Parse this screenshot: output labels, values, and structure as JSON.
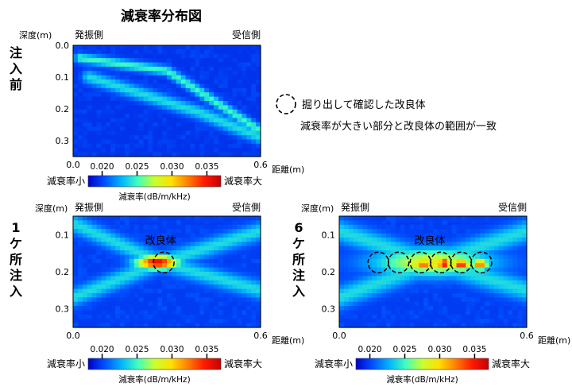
{
  "title": "減衰率分布図",
  "legend": {
    "symbol_label": "掘り出して確認した改良体",
    "note": "減衰率が大きい部分と改良体の範囲が一致"
  },
  "common": {
    "depth_label": "深度(m)",
    "distance_label": "距離(m)",
    "transmitter_label": "発振側",
    "receiver_label": "受信側",
    "colorbar_low": "減衰率小",
    "colorbar_high": "減衰率大",
    "colorbar_unit": "減衰率(dB/m/kHz)",
    "colorbar_ticks": [
      "0.020",
      "0.025",
      "0.030",
      "0.035"
    ],
    "colorbar_range": [
      0.018,
      0.037
    ],
    "xlim": [
      0.0,
      0.6
    ],
    "ylim": [
      0.0,
      0.35
    ],
    "x_ticks": [
      "0.0",
      "0.6"
    ],
    "colormap": [
      "#0000c8",
      "#0050ff",
      "#00b4ff",
      "#40ffbf",
      "#c8ff30",
      "#ffe000",
      "#ff8000",
      "#ff1a00",
      "#c80000"
    ]
  },
  "chart_data": [
    {
      "type": "heatmap",
      "panel_label": "注入前",
      "y_ticks": [
        "0.0",
        "0.1",
        "0.2",
        "0.3"
      ],
      "features": [
        {
          "kind": "path",
          "points": [
            [
              0.02,
              0.04
            ],
            [
              0.3,
              0.08
            ],
            [
              0.6,
              0.27
            ]
          ],
          "peak": 0.025,
          "width": 0.018
        },
        {
          "kind": "path",
          "points": [
            [
              0.05,
              0.1
            ],
            [
              0.4,
              0.21
            ],
            [
              0.6,
              0.29
            ]
          ],
          "peak": 0.024,
          "width": 0.025
        }
      ],
      "background": 0.0195,
      "overlay_label": "",
      "circles": []
    },
    {
      "type": "heatmap",
      "panel_label": "1ケ所注入",
      "y_ticks": [
        "0.1",
        "0.2",
        "0.3"
      ],
      "features": [
        {
          "kind": "path",
          "points": [
            [
              0.0,
              0.07
            ],
            [
              0.28,
              0.175
            ],
            [
              0.6,
              0.25
            ]
          ],
          "peak": 0.024,
          "width": 0.028
        },
        {
          "kind": "path",
          "points": [
            [
              0.0,
              0.27
            ],
            [
              0.28,
              0.175
            ],
            [
              0.6,
              0.09
            ]
          ],
          "peak": 0.024,
          "width": 0.028
        },
        {
          "kind": "blob",
          "cx": 0.27,
          "cy": 0.175,
          "rx": 0.085,
          "ry": 0.024,
          "peak": 0.036
        }
      ],
      "background": 0.0198,
      "overlay_label": "改良体",
      "circles": [
        {
          "x": 0.29,
          "y": 0.175
        }
      ]
    },
    {
      "type": "heatmap",
      "panel_label": "6ケ所注入",
      "y_ticks": [
        "0.1",
        "0.2",
        "0.3"
      ],
      "features": [
        {
          "kind": "path",
          "points": [
            [
              0.0,
              0.09
            ],
            [
              0.3,
              0.175
            ],
            [
              0.6,
              0.25
            ]
          ],
          "peak": 0.024,
          "width": 0.035
        },
        {
          "kind": "path",
          "points": [
            [
              0.0,
              0.27
            ],
            [
              0.3,
              0.175
            ],
            [
              0.6,
              0.09
            ]
          ],
          "peak": 0.024,
          "width": 0.035
        },
        {
          "kind": "blob",
          "cx": 0.3,
          "cy": 0.175,
          "rx": 0.23,
          "ry": 0.045,
          "peak": 0.029
        },
        {
          "kind": "blob",
          "cx": 0.27,
          "cy": 0.18,
          "rx": 0.05,
          "ry": 0.022,
          "peak": 0.033
        },
        {
          "kind": "blob",
          "cx": 0.335,
          "cy": 0.178,
          "rx": 0.03,
          "ry": 0.02,
          "peak": 0.036
        },
        {
          "kind": "blob",
          "cx": 0.39,
          "cy": 0.18,
          "rx": 0.04,
          "ry": 0.02,
          "peak": 0.035
        },
        {
          "kind": "blob",
          "cx": 0.45,
          "cy": 0.18,
          "rx": 0.035,
          "ry": 0.02,
          "peak": 0.033
        }
      ],
      "background": 0.0198,
      "overlay_label": "改良体",
      "circles": [
        {
          "x": 0.125,
          "y": 0.175
        },
        {
          "x": 0.19,
          "y": 0.175
        },
        {
          "x": 0.26,
          "y": 0.175
        },
        {
          "x": 0.325,
          "y": 0.175
        },
        {
          "x": 0.39,
          "y": 0.175
        },
        {
          "x": 0.455,
          "y": 0.175
        }
      ]
    }
  ]
}
